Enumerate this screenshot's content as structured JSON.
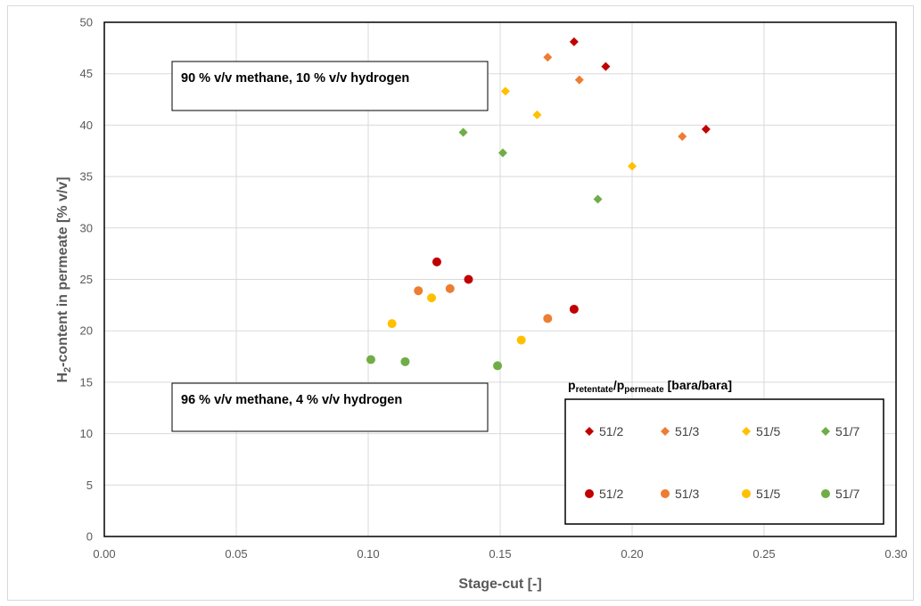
{
  "chart_data": {
    "type": "scatter",
    "xlabel": "Stage-cut [-]",
    "ylabel": "H",
    "ylabel_sub": "2",
    "ylabel_rest": "-content in permeate [% v/v]",
    "xlim": [
      0,
      0.3
    ],
    "ylim": [
      0,
      50
    ],
    "x_ticks": [
      "0.00",
      "0.05",
      "0.10",
      "0.15",
      "0.20",
      "0.25",
      "0.30"
    ],
    "x_tick_values": [
      0,
      0.05,
      0.1,
      0.15,
      0.2,
      0.25,
      0.3
    ],
    "y_ticks": [
      "0",
      "5",
      "10",
      "15",
      "20",
      "25",
      "30",
      "35",
      "40",
      "45",
      "50"
    ],
    "y_tick_values": [
      0,
      5,
      10,
      15,
      20,
      25,
      30,
      35,
      40,
      45,
      50
    ],
    "grid": true,
    "annotations": [
      {
        "id": "annotation-10-hydrogen",
        "text": "90 % v/v methane, 10 % v/v hydrogen"
      },
      {
        "id": "annotation-4-hydrogen",
        "text": "96 % v/v methane, 4 % v/v hydrogen"
      }
    ],
    "legend": {
      "title_p": "p",
      "title_sub1": "retentate",
      "title_slash": "/p",
      "title_sub2": "permeate",
      "title_unit": " [bara/bara]",
      "placement": "bottom-right"
    },
    "series": [
      {
        "name": "51/2",
        "marker": "diamond",
        "color": "#c00000",
        "x": [
          0.178,
          0.19,
          0.228
        ],
        "y": [
          48.1,
          45.7,
          39.6
        ]
      },
      {
        "name": "51/3",
        "marker": "diamond",
        "color": "#ed7d31",
        "x": [
          0.168,
          0.18,
          0.219
        ],
        "y": [
          46.6,
          44.4,
          38.9
        ]
      },
      {
        "name": "51/5",
        "marker": "diamond",
        "color": "#ffc000",
        "x": [
          0.152,
          0.164,
          0.2
        ],
        "y": [
          43.3,
          41.0,
          36.0
        ]
      },
      {
        "name": "51/7",
        "marker": "diamond",
        "color": "#70ad47",
        "x": [
          0.136,
          0.151,
          0.187
        ],
        "y": [
          39.3,
          37.3,
          32.8
        ]
      },
      {
        "name": "51/2",
        "marker": "circle",
        "color": "#c00000",
        "x": [
          0.126,
          0.138,
          0.178
        ],
        "y": [
          26.7,
          25.0,
          22.1
        ]
      },
      {
        "name": "51/3",
        "marker": "circle",
        "color": "#ed7d31",
        "x": [
          0.119,
          0.131,
          0.168
        ],
        "y": [
          23.9,
          24.1,
          21.2
        ]
      },
      {
        "name": "51/5",
        "marker": "circle",
        "color": "#ffc000",
        "x": [
          0.109,
          0.124,
          0.158
        ],
        "y": [
          20.7,
          23.2,
          19.1
        ]
      },
      {
        "name": "51/7",
        "marker": "circle",
        "color": "#70ad47",
        "x": [
          0.101,
          0.114,
          0.149
        ],
        "y": [
          17.2,
          17.0,
          16.6
        ]
      }
    ]
  }
}
